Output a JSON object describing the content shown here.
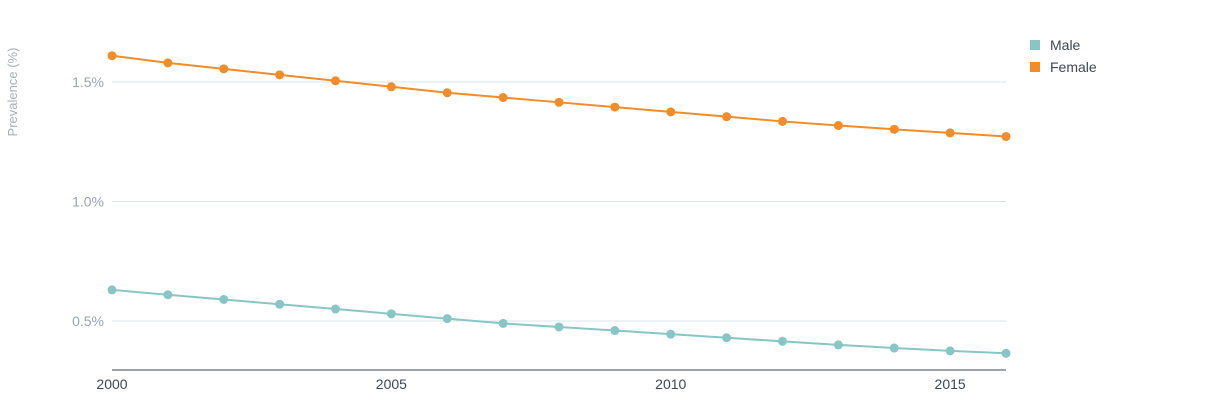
{
  "chart_data": {
    "type": "line",
    "x": [
      2000,
      2001,
      2002,
      2003,
      2004,
      2005,
      2006,
      2007,
      2008,
      2009,
      2010,
      2011,
      2012,
      2013,
      2014,
      2015,
      2016
    ],
    "series": [
      {
        "name": "Male",
        "color": "#88c6c6",
        "values": [
          0.63,
          0.61,
          0.59,
          0.57,
          0.55,
          0.53,
          0.51,
          0.49,
          0.475,
          0.46,
          0.445,
          0.43,
          0.415,
          0.4,
          0.387,
          0.375,
          0.365
        ]
      },
      {
        "name": "Female",
        "color": "#f28c28",
        "values": [
          1.61,
          1.58,
          1.555,
          1.53,
          1.505,
          1.48,
          1.455,
          1.435,
          1.415,
          1.395,
          1.375,
          1.355,
          1.335,
          1.318,
          1.302,
          1.287,
          1.272
        ]
      }
    ],
    "xticks": [
      "2000",
      "2005",
      "2010",
      "2015"
    ],
    "yticks": [
      {
        "value": 0.5,
        "label": "0.5%"
      },
      {
        "value": 1.0,
        "label": "1.0%"
      },
      {
        "value": 1.5,
        "label": "1.5%"
      }
    ],
    "ylabel": "Prevalence (%)",
    "xlabel": "",
    "title": "",
    "ylim": [
      0.3,
      1.75
    ],
    "xlim": [
      2000,
      2016
    ],
    "grid": "horizontal",
    "legend_position": "top-right"
  }
}
